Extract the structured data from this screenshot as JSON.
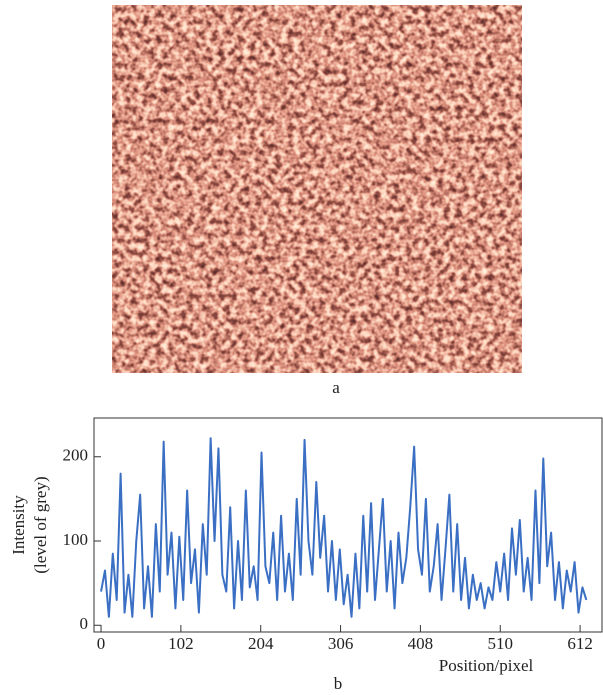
{
  "captions": {
    "image": "a",
    "chart": "b"
  },
  "chart_data": {
    "type": "line",
    "y_label_lines": [
      "Intensity",
      "(level of grey)"
    ],
    "x_label": "Position/pixel",
    "x": [
      0,
      5,
      10,
      15,
      20,
      25,
      30,
      35,
      40,
      45,
      50,
      55,
      60,
      65,
      70,
      75,
      80,
      85,
      90,
      95,
      100,
      105,
      110,
      115,
      120,
      125,
      130,
      135,
      140,
      145,
      150,
      155,
      160,
      165,
      170,
      175,
      180,
      185,
      190,
      195,
      200,
      205,
      210,
      215,
      220,
      225,
      230,
      235,
      240,
      245,
      250,
      255,
      260,
      265,
      270,
      275,
      280,
      285,
      290,
      295,
      300,
      305,
      310,
      315,
      320,
      325,
      330,
      335,
      340,
      345,
      350,
      355,
      360,
      365,
      370,
      375,
      380,
      385,
      390,
      395,
      400,
      405,
      410,
      415,
      420,
      425,
      430,
      435,
      440,
      445,
      450,
      455,
      460,
      465,
      470,
      475,
      480,
      485,
      490,
      495,
      500,
      505,
      510,
      515,
      520,
      525,
      530,
      535,
      540,
      545,
      550,
      555,
      560,
      565,
      570,
      575,
      580,
      585,
      590,
      595,
      600,
      605,
      610,
      615,
      620
    ],
    "series": [
      {
        "color": "#3a6fc4",
        "values": [
          40,
          65,
          10,
          85,
          30,
          180,
          15,
          60,
          10,
          100,
          155,
          20,
          70,
          10,
          120,
          40,
          218,
          60,
          110,
          20,
          105,
          30,
          160,
          50,
          90,
          15,
          120,
          60,
          222,
          100,
          210,
          60,
          40,
          140,
          20,
          100,
          30,
          160,
          45,
          70,
          30,
          205,
          70,
          50,
          110,
          30,
          130,
          40,
          85,
          30,
          150,
          60,
          220,
          100,
          60,
          170,
          80,
          130,
          40,
          100,
          30,
          90,
          25,
          60,
          10,
          85,
          20,
          130,
          40,
          145,
          30,
          90,
          150,
          40,
          100,
          20,
          110,
          50,
          80,
          140,
          212,
          90,
          60,
          150,
          40,
          70,
          120,
          30,
          90,
          155,
          40,
          120,
          30,
          80,
          20,
          60,
          30,
          50,
          20,
          45,
          30,
          75,
          40,
          85,
          30,
          115,
          60,
          125,
          40,
          80,
          30,
          160,
          50,
          198,
          70,
          110,
          30,
          75,
          20,
          65,
          40,
          75,
          15,
          45,
          30
        ]
      }
    ],
    "xlim": [
      -9,
      640
    ],
    "ylim": [
      -8,
      246
    ],
    "xticks": [
      0,
      102,
      204,
      306,
      408,
      510,
      612
    ],
    "yticks": [
      0,
      100,
      200
    ]
  }
}
